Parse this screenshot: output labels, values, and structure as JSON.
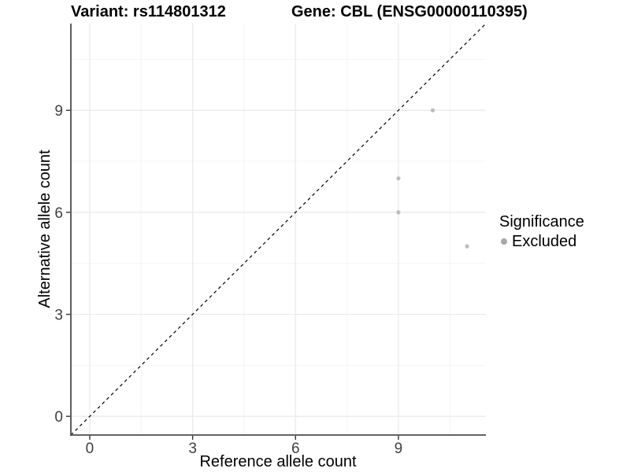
{
  "title": {
    "variant": "Variant: rs114801312",
    "gene": "Gene: CBL (ENSG00000110395)"
  },
  "chart_data": {
    "type": "scatter",
    "title": "Variant: rs114801312  Gene: CBL (ENSG00000110395)",
    "xlabel": "Reference allele count",
    "ylabel": "Alternative allele count",
    "xlim": [
      -0.55,
      11.55
    ],
    "ylim": [
      -0.55,
      11.55
    ],
    "x_ticks": [
      0,
      3,
      6,
      9
    ],
    "y_ticks": [
      0,
      3,
      6,
      9
    ],
    "x_tick_labels": [
      "0",
      "3",
      "6",
      "9"
    ],
    "y_tick_labels": [
      "0",
      "3",
      "6",
      "9"
    ],
    "x_minor_gridlines": [
      1.5,
      4.5,
      7.5,
      10.5
    ],
    "y_minor_gridlines": [
      1.5,
      4.5,
      7.5,
      10.5
    ],
    "grid": "on",
    "identity_line": {
      "style": "dashed",
      "x1": -0.55,
      "y1": -0.55,
      "x2": 11.55,
      "y2": 11.55
    },
    "series": [
      {
        "name": "Excluded",
        "points": [
          [
            9,
            6
          ],
          [
            9,
            7
          ],
          [
            10,
            9
          ],
          [
            11,
            5
          ]
        ]
      }
    ],
    "legend": {
      "title": "Significance",
      "position": "right",
      "items": [
        {
          "label": "Excluded"
        }
      ]
    }
  },
  "colors": {
    "background": "#ffffff",
    "point": "#bcbcbc",
    "legend_point": "#a8a8a8",
    "grid_major": "#e9e9e9",
    "grid_minor": "#f4f4f4",
    "axis_line": "#4d4d4d",
    "tick_mark": "#333333",
    "tick_label": "#404040",
    "identity_line": "#000000"
  }
}
